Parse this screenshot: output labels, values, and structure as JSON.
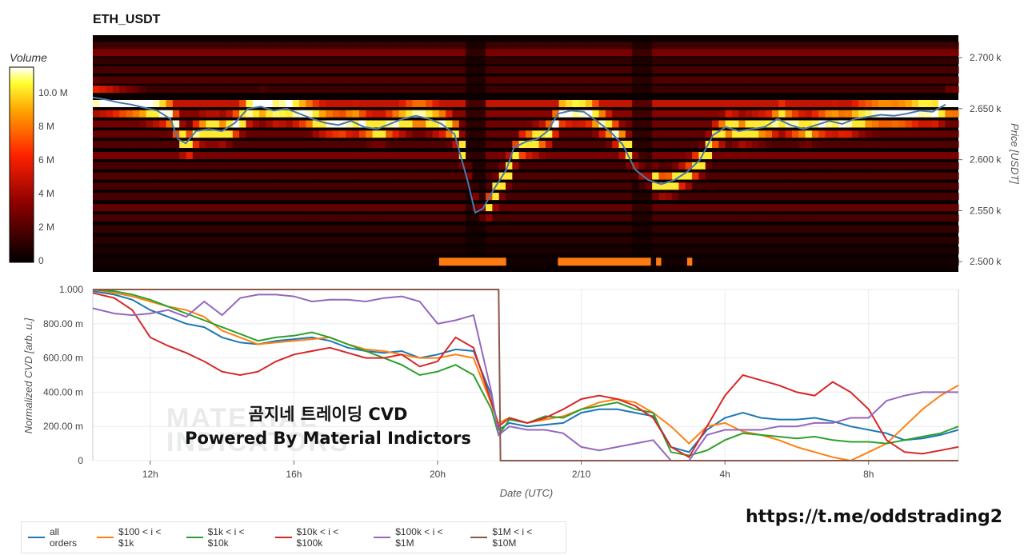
{
  "title": "ETH_USDT",
  "colorbar": {
    "label": "Volume",
    "ticks": [
      "10.0 M",
      "8 M",
      "6 M",
      "4 M",
      "2 M",
      "0"
    ]
  },
  "heatmap": {
    "price_axis_label": "Price [USDT]",
    "price_ticks": [
      "2.700 k",
      "2.650 k",
      "2.600 k",
      "2.550 k",
      "2.500 k"
    ],
    "price_tick_values": [
      2700,
      2650,
      2600,
      2550,
      2500
    ],
    "price_range": [
      2490,
      2722
    ],
    "price_line": [
      [
        0,
        2661
      ],
      [
        0.5,
        2659
      ],
      [
        1,
        2656
      ],
      [
        1.5,
        2654
      ],
      [
        2,
        2651
      ],
      [
        2.5,
        2648
      ],
      [
        3,
        2640
      ],
      [
        3.3,
        2620
      ],
      [
        3.6,
        2616
      ],
      [
        4,
        2628
      ],
      [
        4.5,
        2630
      ],
      [
        5,
        2628
      ],
      [
        5.5,
        2636
      ],
      [
        6,
        2650
      ],
      [
        6.5,
        2652
      ],
      [
        7,
        2648
      ],
      [
        7.5,
        2650
      ],
      [
        8,
        2645
      ],
      [
        8.5,
        2640
      ],
      [
        9,
        2636
      ],
      [
        9.5,
        2634
      ],
      [
        10,
        2638
      ],
      [
        10.5,
        2632
      ],
      [
        11,
        2630
      ],
      [
        11.5,
        2635
      ],
      [
        12,
        2640
      ],
      [
        12.5,
        2643
      ],
      [
        13,
        2640
      ],
      [
        13.5,
        2635
      ],
      [
        14,
        2625
      ],
      [
        14.5,
        2580
      ],
      [
        14.8,
        2548
      ],
      [
        15.1,
        2552
      ],
      [
        15.5,
        2570
      ],
      [
        16,
        2590
      ],
      [
        16.3,
        2612
      ],
      [
        16.8,
        2618
      ],
      [
        17.2,
        2620
      ],
      [
        17.6,
        2628
      ],
      [
        18,
        2645
      ],
      [
        18.5,
        2648
      ],
      [
        19,
        2647
      ],
      [
        19.5,
        2638
      ],
      [
        20,
        2628
      ],
      [
        20.5,
        2615
      ],
      [
        21,
        2590
      ],
      [
        21.5,
        2580
      ],
      [
        22,
        2576
      ],
      [
        22.5,
        2580
      ],
      [
        23,
        2588
      ],
      [
        23.5,
        2600
      ],
      [
        24,
        2624
      ],
      [
        24.5,
        2632
      ],
      [
        25,
        2628
      ],
      [
        25.5,
        2630
      ],
      [
        26,
        2632
      ],
      [
        26.5,
        2640
      ],
      [
        27,
        2634
      ],
      [
        27.5,
        2630
      ],
      [
        28,
        2634
      ],
      [
        28.5,
        2638
      ],
      [
        29,
        2635
      ],
      [
        29.5,
        2640
      ],
      [
        30,
        2642
      ],
      [
        30.5,
        2644
      ],
      [
        31,
        2643
      ],
      [
        31.5,
        2645
      ],
      [
        32,
        2648
      ],
      [
        32.5,
        2647
      ],
      [
        33,
        2654
      ]
    ],
    "heat_bands": [
      {
        "price": 2712,
        "level": 0.25
      },
      {
        "price": 2705,
        "level": 0.55
      },
      {
        "price": 2697,
        "level": 0.2
      },
      {
        "price": 2688,
        "level": 0.3
      },
      {
        "price": 2678,
        "level": 0.35
      },
      {
        "price": 2669,
        "level": 0.25
      },
      {
        "price": 2655,
        "level": 0.85
      },
      {
        "price": 2645,
        "level": 0.6
      },
      {
        "price": 2635,
        "level": 0.5
      },
      {
        "price": 2625,
        "level": 0.45
      },
      {
        "price": 2615,
        "level": 0.35
      },
      {
        "price": 2604,
        "level": 0.55
      },
      {
        "price": 2594,
        "level": 0.3
      },
      {
        "price": 2584,
        "level": 0.35
      },
      {
        "price": 2574,
        "level": 0.3
      },
      {
        "price": 2564,
        "level": 0.3
      },
      {
        "price": 2553,
        "level": 0.45
      },
      {
        "price": 2543,
        "level": 0.3
      },
      {
        "price": 2532,
        "level": 0.2
      },
      {
        "price": 2521,
        "level": 0.15
      },
      {
        "price": 2511,
        "level": 0.08
      },
      {
        "price": 2500,
        "level": 0.05
      }
    ],
    "colors": {
      "line": "#4a78a8"
    }
  },
  "chart_data": {
    "type": "line",
    "title": "ETH_USDT",
    "xlabel": "Date (UTC)",
    "ylabel": "Normalized CVD [arb. u.]",
    "x_ticks": [
      "12h",
      "16h",
      "20h",
      "2/10",
      "4h",
      "8h"
    ],
    "y_ticks": [
      "1.000",
      "800.00 m",
      "600.00 m",
      "400.00 m",
      "200.00 m",
      "0"
    ],
    "ylim": [
      0,
      1
    ],
    "xlim": [
      10.4,
      34.5
    ],
    "x_tick_values": [
      12,
      16,
      20,
      24,
      28,
      32
    ],
    "series": [
      {
        "name": "all orders",
        "color": "#1f77b4",
        "x": [
          10.4,
          11,
          11.5,
          12,
          12.5,
          13,
          13.5,
          14,
          14.5,
          15,
          15.5,
          16,
          16.5,
          17,
          17.5,
          18,
          18.5,
          19,
          19.5,
          20,
          20.5,
          21,
          21.5,
          21.7,
          22,
          22.5,
          23,
          23.5,
          24,
          24.5,
          25,
          25.5,
          26,
          26.5,
          27,
          27.5,
          28,
          28.5,
          29,
          29.5,
          30,
          30.5,
          31,
          31.5,
          32,
          32.5,
          33,
          33.5,
          34,
          34.5
        ],
        "y": [
          0.99,
          0.97,
          0.94,
          0.88,
          0.84,
          0.8,
          0.78,
          0.72,
          0.69,
          0.68,
          0.7,
          0.71,
          0.72,
          0.7,
          0.66,
          0.64,
          0.63,
          0.64,
          0.6,
          0.62,
          0.65,
          0.64,
          0.38,
          0.18,
          0.22,
          0.2,
          0.21,
          0.22,
          0.28,
          0.3,
          0.3,
          0.28,
          0.26,
          0.08,
          0.05,
          0.18,
          0.25,
          0.28,
          0.25,
          0.24,
          0.24,
          0.25,
          0.23,
          0.2,
          0.18,
          0.16,
          0.12,
          0.13,
          0.15,
          0.18
        ]
      },
      {
        "name": "$100 < i < $1k",
        "color": "#ff7f0e",
        "x": [
          10.4,
          11,
          11.5,
          12,
          12.5,
          13,
          13.5,
          14,
          14.5,
          15,
          15.5,
          16,
          16.5,
          17,
          17.5,
          18,
          18.5,
          19,
          19.5,
          20,
          20.5,
          21,
          21.5,
          21.7,
          22,
          22.5,
          23,
          23.5,
          24,
          24.5,
          25,
          25.5,
          26,
          26.5,
          27,
          27.5,
          28,
          28.5,
          29,
          29.5,
          30,
          30.5,
          31,
          31.5,
          32,
          32.5,
          33,
          33.5,
          34,
          34.5
        ],
        "y": [
          1.0,
          0.98,
          0.96,
          0.93,
          0.9,
          0.88,
          0.84,
          0.76,
          0.72,
          0.68,
          0.69,
          0.7,
          0.71,
          0.72,
          0.68,
          0.65,
          0.64,
          0.62,
          0.6,
          0.6,
          0.62,
          0.6,
          0.33,
          0.22,
          0.25,
          0.22,
          0.24,
          0.26,
          0.3,
          0.34,
          0.36,
          0.34,
          0.28,
          0.2,
          0.1,
          0.2,
          0.22,
          0.17,
          0.15,
          0.12,
          0.08,
          0.05,
          0.02,
          0.0,
          0.05,
          0.1,
          0.2,
          0.3,
          0.38,
          0.44
        ]
      },
      {
        "name": "$1k < i < $10k",
        "color": "#2ca02c",
        "x": [
          10.4,
          11,
          11.5,
          12,
          12.5,
          13,
          13.5,
          14,
          14.5,
          15,
          15.5,
          16,
          16.5,
          17,
          17.5,
          18,
          18.5,
          19,
          19.5,
          20,
          20.5,
          21,
          21.5,
          21.7,
          22,
          22.5,
          23,
          23.5,
          24,
          24.5,
          25,
          25.5,
          26,
          26.5,
          27,
          27.5,
          28,
          28.5,
          29,
          29.5,
          30,
          30.5,
          31,
          31.5,
          32,
          32.5,
          33,
          33.5,
          34,
          34.5
        ],
        "y": [
          1.0,
          0.99,
          0.97,
          0.94,
          0.9,
          0.86,
          0.82,
          0.78,
          0.74,
          0.7,
          0.72,
          0.73,
          0.75,
          0.72,
          0.68,
          0.64,
          0.6,
          0.56,
          0.5,
          0.52,
          0.56,
          0.5,
          0.3,
          0.15,
          0.24,
          0.22,
          0.26,
          0.25,
          0.3,
          0.32,
          0.34,
          0.3,
          0.28,
          0.05,
          0.03,
          0.06,
          0.12,
          0.16,
          0.15,
          0.14,
          0.13,
          0.14,
          0.12,
          0.11,
          0.11,
          0.1,
          0.12,
          0.14,
          0.16,
          0.2
        ]
      },
      {
        "name": "$10k < i < $100k",
        "color": "#d62728",
        "x": [
          10.4,
          11,
          11.5,
          12,
          12.5,
          13,
          13.5,
          14,
          14.5,
          15,
          15.5,
          16,
          16.5,
          17,
          17.5,
          18,
          18.5,
          19,
          19.5,
          20,
          20.5,
          21,
          21.5,
          21.7,
          22,
          22.5,
          23,
          23.5,
          24,
          24.5,
          25,
          25.5,
          26,
          26.5,
          27,
          27.5,
          28,
          28.5,
          29,
          29.5,
          30,
          30.5,
          31,
          31.5,
          32,
          32.5,
          33,
          33.5,
          34,
          34.5
        ],
        "y": [
          0.98,
          0.95,
          0.88,
          0.72,
          0.67,
          0.63,
          0.58,
          0.52,
          0.5,
          0.52,
          0.58,
          0.62,
          0.64,
          0.66,
          0.63,
          0.6,
          0.6,
          0.62,
          0.55,
          0.58,
          0.72,
          0.66,
          0.34,
          0.2,
          0.25,
          0.22,
          0.25,
          0.3,
          0.36,
          0.38,
          0.36,
          0.32,
          0.25,
          0.08,
          0.02,
          0.2,
          0.38,
          0.5,
          0.47,
          0.44,
          0.4,
          0.38,
          0.46,
          0.4,
          0.3,
          0.12,
          0.05,
          0.04,
          0.06,
          0.08
        ]
      },
      {
        "name": "$100k < i < $1M",
        "color": "#9467bd",
        "x": [
          10.4,
          11,
          11.5,
          12,
          12.5,
          13,
          13.5,
          14,
          14.5,
          15,
          15.5,
          16,
          16.5,
          17,
          17.5,
          18,
          18.5,
          19,
          19.5,
          20,
          20.5,
          21,
          21.5,
          21.7,
          22,
          22.5,
          23,
          23.5,
          24,
          24.5,
          25,
          25.5,
          26,
          26.5,
          27,
          27.5,
          28,
          28.5,
          29,
          29.5,
          30,
          30.5,
          31,
          31.5,
          32,
          32.5,
          33,
          33.5,
          34,
          34.5
        ],
        "y": [
          0.89,
          0.86,
          0.85,
          0.86,
          0.88,
          0.84,
          0.93,
          0.85,
          0.95,
          0.97,
          0.97,
          0.96,
          0.93,
          0.94,
          0.94,
          0.93,
          0.95,
          0.96,
          0.93,
          0.8,
          0.82,
          0.85,
          0.4,
          0.15,
          0.2,
          0.18,
          0.18,
          0.16,
          0.08,
          0.06,
          0.08,
          0.1,
          0.12,
          0.0,
          0.0,
          0.15,
          0.18,
          0.18,
          0.18,
          0.2,
          0.2,
          0.22,
          0.22,
          0.25,
          0.25,
          0.35,
          0.38,
          0.4,
          0.4,
          0.4
        ]
      },
      {
        "name": "$1M < i < $10M",
        "color": "#8c564b",
        "x": [
          10.4,
          21.6,
          21.7,
          21.75,
          34.5
        ],
        "y": [
          1.0,
          1.0,
          1.0,
          0.0,
          0.0
        ]
      }
    ],
    "legend_placement": "bottom"
  },
  "watermark": {
    "line1": "MATERIAL",
    "line2": "INDICATORS"
  },
  "overlay": {
    "line1": "곰지네 트레이딩 CVD",
    "line2": "Powered By Material Indictors"
  },
  "footer_url": "https://t.me/oddstrading2"
}
